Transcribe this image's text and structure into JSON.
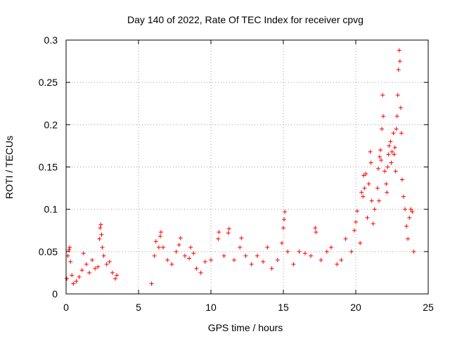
{
  "chart_data": {
    "type": "scatter",
    "title": "Day 140 of 2022, Rate Of TEC Index for receiver cpvg",
    "xlabel": "GPS time / hours",
    "ylabel": "ROTI / TECUs",
    "xlim": [
      0,
      25
    ],
    "ylim": [
      0,
      0.3
    ],
    "xticks": [
      0,
      5,
      10,
      15,
      20,
      25
    ],
    "xtick_labels": [
      "0",
      "5",
      "10",
      "15",
      "20",
      "25"
    ],
    "yticks": [
      0,
      0.05,
      0.1,
      0.15,
      0.2,
      0.25,
      0.3
    ],
    "ytick_labels": [
      "0",
      "0.05",
      "0.1",
      "0.15",
      "0.2",
      "0.25",
      "0.3"
    ],
    "grid": true,
    "marker": "+",
    "marker_color": "#ff0000",
    "series": [
      {
        "name": "ROTI",
        "points": [
          [
            0.05,
            0.018
          ],
          [
            0.12,
            0.045
          ],
          [
            0.2,
            0.052
          ],
          [
            0.25,
            0.055
          ],
          [
            0.3,
            0.038
          ],
          [
            0.4,
            0.022
          ],
          [
            0.5,
            0.012
          ],
          [
            0.7,
            0.015
          ],
          [
            0.9,
            0.02
          ],
          [
            1.1,
            0.028
          ],
          [
            1.2,
            0.048
          ],
          [
            1.4,
            0.035
          ],
          [
            1.6,
            0.025
          ],
          [
            1.8,
            0.04
          ],
          [
            2.0,
            0.03
          ],
          [
            2.2,
            0.032
          ],
          [
            2.3,
            0.065
          ],
          [
            2.35,
            0.078
          ],
          [
            2.4,
            0.082
          ],
          [
            2.45,
            0.07
          ],
          [
            2.5,
            0.055
          ],
          [
            2.6,
            0.045
          ],
          [
            2.8,
            0.035
          ],
          [
            3.0,
            0.038
          ],
          [
            3.2,
            0.025
          ],
          [
            3.4,
            0.018
          ],
          [
            3.5,
            0.022
          ],
          [
            5.9,
            0.012
          ],
          [
            6.1,
            0.045
          ],
          [
            6.2,
            0.062
          ],
          [
            6.4,
            0.055
          ],
          [
            6.5,
            0.068
          ],
          [
            6.55,
            0.073
          ],
          [
            6.7,
            0.055
          ],
          [
            7.0,
            0.04
          ],
          [
            7.3,
            0.035
          ],
          [
            7.6,
            0.05
          ],
          [
            7.8,
            0.058
          ],
          [
            7.9,
            0.066
          ],
          [
            8.2,
            0.045
          ],
          [
            8.5,
            0.042
          ],
          [
            8.6,
            0.055
          ],
          [
            8.8,
            0.048
          ],
          [
            9.0,
            0.03
          ],
          [
            9.3,
            0.025
          ],
          [
            9.6,
            0.038
          ],
          [
            10.0,
            0.04
          ],
          [
            10.5,
            0.065
          ],
          [
            10.55,
            0.073
          ],
          [
            10.9,
            0.045
          ],
          [
            11.2,
            0.072
          ],
          [
            11.25,
            0.077
          ],
          [
            11.6,
            0.04
          ],
          [
            12.0,
            0.055
          ],
          [
            12.1,
            0.066
          ],
          [
            12.4,
            0.045
          ],
          [
            12.8,
            0.035
          ],
          [
            13.2,
            0.045
          ],
          [
            13.6,
            0.038
          ],
          [
            13.9,
            0.055
          ],
          [
            14.2,
            0.03
          ],
          [
            14.6,
            0.04
          ],
          [
            14.9,
            0.06
          ],
          [
            15.0,
            0.078
          ],
          [
            15.05,
            0.088
          ],
          [
            15.1,
            0.097
          ],
          [
            15.3,
            0.05
          ],
          [
            15.7,
            0.035
          ],
          [
            16.1,
            0.05
          ],
          [
            16.5,
            0.048
          ],
          [
            16.9,
            0.045
          ],
          [
            17.2,
            0.078
          ],
          [
            17.25,
            0.073
          ],
          [
            17.6,
            0.04
          ],
          [
            18.0,
            0.05
          ],
          [
            18.3,
            0.055
          ],
          [
            18.7,
            0.035
          ],
          [
            19.0,
            0.04
          ],
          [
            19.3,
            0.065
          ],
          [
            19.7,
            0.05
          ],
          [
            19.9,
            0.075
          ],
          [
            20.0,
            0.085
          ],
          [
            20.1,
            0.098
          ],
          [
            20.3,
            0.06
          ],
          [
            20.4,
            0.12
          ],
          [
            20.5,
            0.115
          ],
          [
            20.55,
            0.14
          ],
          [
            20.6,
            0.125
          ],
          [
            20.7,
            0.142
          ],
          [
            20.8,
            0.09
          ],
          [
            20.9,
            0.13
          ],
          [
            21.0,
            0.168
          ],
          [
            21.05,
            0.155
          ],
          [
            21.1,
            0.11
          ],
          [
            21.2,
            0.083
          ],
          [
            21.3,
            0.1
          ],
          [
            21.5,
            0.125
          ],
          [
            21.55,
            0.148
          ],
          [
            21.6,
            0.11
          ],
          [
            21.65,
            0.162
          ],
          [
            21.7,
            0.17
          ],
          [
            21.75,
            0.158
          ],
          [
            21.8,
            0.195
          ],
          [
            21.85,
            0.235
          ],
          [
            21.9,
            0.21
          ],
          [
            22.0,
            0.145
          ],
          [
            22.1,
            0.13
          ],
          [
            22.15,
            0.12
          ],
          [
            22.2,
            0.15
          ],
          [
            22.25,
            0.165
          ],
          [
            22.3,
            0.175
          ],
          [
            22.4,
            0.18
          ],
          [
            22.45,
            0.155
          ],
          [
            22.5,
            0.168
          ],
          [
            22.6,
            0.19
          ],
          [
            22.65,
            0.165
          ],
          [
            22.7,
            0.173
          ],
          [
            22.75,
            0.145
          ],
          [
            22.8,
            0.195
          ],
          [
            22.85,
            0.21
          ],
          [
            22.9,
            0.235
          ],
          [
            22.95,
            0.265
          ],
          [
            23.0,
            0.288
          ],
          [
            23.05,
            0.275
          ],
          [
            23.1,
            0.22
          ],
          [
            23.15,
            0.19
          ],
          [
            23.2,
            0.135
          ],
          [
            23.3,
            0.115
          ],
          [
            23.4,
            0.1
          ],
          [
            23.5,
            0.08
          ],
          [
            23.6,
            0.065
          ],
          [
            23.7,
            0.09
          ],
          [
            23.8,
            0.1
          ],
          [
            23.9,
            0.097
          ],
          [
            24.0,
            0.05
          ]
        ]
      }
    ]
  }
}
